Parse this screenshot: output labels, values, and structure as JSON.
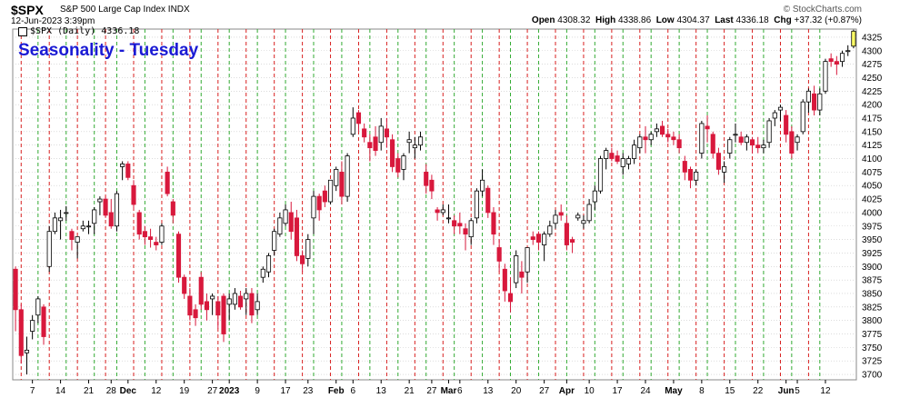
{
  "header": {
    "symbol": "$SPX",
    "description": "S&P 500 Large Cap Index  INDX",
    "datetime": "12-Jun-2023 3:39pm",
    "watermark": "© StockCharts.com",
    "open_label": "Open",
    "open": "4308.32",
    "high_label": "High",
    "high": "4338.86",
    "low_label": "Low",
    "low": "4304.37",
    "last_label": "Last",
    "last": "4336.18",
    "chg_label": "Chg",
    "chg": "+37.32 (+0.87%)"
  },
  "legend": {
    "text": "$SPX (Daily) 4336.18"
  },
  "annotation": "Seasonality - Tuesday",
  "colors": {
    "up": "#ffffff",
    "down": "#d8183c",
    "vline_green": "#33aa33",
    "vline_red": "#d82020",
    "grid": "#c8c8c8",
    "annotation": "#1a1ad4",
    "last_bar": "#ffff66"
  },
  "chart_data": {
    "type": "candlestick",
    "title": "Seasonality - Tuesday",
    "ylim": [
      3690,
      4340
    ],
    "y_ticks": [
      3700,
      3725,
      3750,
      3775,
      3800,
      3825,
      3850,
      3875,
      3900,
      3925,
      3950,
      3975,
      4000,
      4025,
      4050,
      4075,
      4100,
      4125,
      4150,
      4175,
      4200,
      4225,
      4250,
      4275,
      4300,
      4325
    ],
    "x_tick_labels": [
      {
        "label": "7",
        "index": 3,
        "bold": false
      },
      {
        "label": "14",
        "index": 8,
        "bold": false
      },
      {
        "label": "21",
        "index": 13,
        "bold": false
      },
      {
        "label": "28",
        "index": 17,
        "bold": false
      },
      {
        "label": "Dec",
        "index": 20,
        "bold": true
      },
      {
        "label": "12",
        "index": 25,
        "bold": false
      },
      {
        "label": "19",
        "index": 30,
        "bold": false
      },
      {
        "label": "27",
        "index": 35,
        "bold": false
      },
      {
        "label": "2023",
        "index": 38,
        "bold": true
      },
      {
        "label": "9",
        "index": 43,
        "bold": false
      },
      {
        "label": "17",
        "index": 48,
        "bold": false
      },
      {
        "label": "23",
        "index": 52,
        "bold": false
      },
      {
        "label": "Feb",
        "index": 57,
        "bold": true
      },
      {
        "label": "6",
        "index": 60,
        "bold": false
      },
      {
        "label": "13",
        "index": 65,
        "bold": false
      },
      {
        "label": "21",
        "index": 70,
        "bold": false
      },
      {
        "label": "27",
        "index": 74,
        "bold": false
      },
      {
        "label": "Mar",
        "index": 77,
        "bold": true
      },
      {
        "label": "6",
        "index": 79,
        "bold": false
      },
      {
        "label": "13",
        "index": 84,
        "bold": false
      },
      {
        "label": "20",
        "index": 89,
        "bold": false
      },
      {
        "label": "27",
        "index": 94,
        "bold": false
      },
      {
        "label": "Apr",
        "index": 98,
        "bold": true
      },
      {
        "label": "10",
        "index": 102,
        "bold": false
      },
      {
        "label": "17",
        "index": 107,
        "bold": false
      },
      {
        "label": "24",
        "index": 112,
        "bold": false
      },
      {
        "label": "May",
        "index": 117,
        "bold": true
      },
      {
        "label": "8",
        "index": 122,
        "bold": false
      },
      {
        "label": "15",
        "index": 127,
        "bold": false
      },
      {
        "label": "22",
        "index": 132,
        "bold": false
      },
      {
        "label": "Jun",
        "index": 137,
        "bold": true
      },
      {
        "label": "5",
        "index": 139,
        "bold": false
      },
      {
        "label": "12",
        "index": 144,
        "bold": false
      }
    ],
    "vlines_green": [
      4,
      9,
      14,
      18,
      23,
      28,
      33,
      38,
      43,
      48,
      53,
      58,
      63,
      68,
      73,
      78,
      83,
      88,
      93,
      98,
      103,
      108,
      113,
      118,
      123,
      128,
      133,
      138,
      143
    ],
    "vlines_red": [
      1,
      6,
      11,
      16,
      21,
      26,
      31,
      36,
      41,
      46,
      51,
      56,
      61,
      66,
      71,
      76,
      81,
      86,
      91,
      96,
      101,
      106,
      111,
      116,
      121,
      126,
      131,
      136,
      141
    ],
    "ohlc": [
      [
        3895,
        3900,
        3780,
        3820
      ],
      [
        3820,
        3830,
        3720,
        3735
      ],
      [
        3740,
        3770,
        3700,
        3745
      ],
      [
        3780,
        3810,
        3765,
        3800
      ],
      [
        3810,
        3845,
        3795,
        3840
      ],
      [
        3825,
        3830,
        3755,
        3770
      ],
      [
        3900,
        3975,
        3890,
        3965
      ],
      [
        3965,
        4000,
        3960,
        3990
      ],
      [
        3985,
        4005,
        3950,
        3990
      ],
      [
        4000,
        4012,
        3985,
        4000
      ],
      [
        3965,
        3970,
        3930,
        3950
      ],
      [
        3945,
        3955,
        3915,
        3955
      ],
      [
        3970,
        3985,
        3965,
        3975
      ],
      [
        3975,
        3985,
        3960,
        3975
      ],
      [
        3980,
        4010,
        3960,
        4005
      ],
      [
        4020,
        4030,
        3995,
        4025
      ],
      [
        4025,
        4030,
        3990,
        3995
      ],
      [
        4000,
        4025,
        3970,
        3975
      ],
      [
        3975,
        4040,
        3965,
        4035
      ],
      [
        4085,
        4095,
        4060,
        4090
      ],
      [
        4090,
        4095,
        4060,
        4065
      ],
      [
        4050,
        4060,
        4005,
        4015
      ],
      [
        4000,
        4005,
        3950,
        3960
      ],
      [
        3965,
        3975,
        3940,
        3955
      ],
      [
        3955,
        3970,
        3935,
        3950
      ],
      [
        3945,
        3955,
        3930,
        3940
      ],
      [
        3945,
        3980,
        3940,
        3975
      ],
      [
        4075,
        4085,
        4030,
        4035
      ],
      [
        4020,
        4025,
        3980,
        3995
      ],
      [
        3960,
        3965,
        3870,
        3880
      ],
      [
        3880,
        3885,
        3840,
        3850
      ],
      [
        3845,
        3860,
        3800,
        3810
      ],
      [
        3820,
        3830,
        3790,
        3805
      ],
      [
        3880,
        3890,
        3820,
        3830
      ],
      [
        3835,
        3850,
        3800,
        3820
      ],
      [
        3840,
        3850,
        3810,
        3845
      ],
      [
        3835,
        3845,
        3785,
        3810
      ],
      [
        3845,
        3850,
        3760,
        3775
      ],
      [
        3830,
        3850,
        3800,
        3840
      ],
      [
        3830,
        3860,
        3820,
        3850
      ],
      [
        3845,
        3855,
        3820,
        3825
      ],
      [
        3840,
        3860,
        3810,
        3850
      ],
      [
        3850,
        3860,
        3795,
        3810
      ],
      [
        3820,
        3850,
        3810,
        3835
      ],
      [
        3880,
        3900,
        3870,
        3895
      ],
      [
        3890,
        3925,
        3880,
        3920
      ],
      [
        3930,
        3970,
        3920,
        3965
      ],
      [
        3960,
        4000,
        3955,
        3990
      ],
      [
        3980,
        4015,
        3975,
        4005
      ],
      [
        4000,
        4020,
        3950,
        3965
      ],
      [
        3990,
        4005,
        3910,
        3920
      ],
      [
        3920,
        3930,
        3890,
        3905
      ],
      [
        3915,
        3960,
        3900,
        3950
      ],
      [
        3990,
        4040,
        3960,
        4030
      ],
      [
        4030,
        4035,
        3985,
        4005
      ],
      [
        4040,
        4050,
        4010,
        4020
      ],
      [
        4020,
        4060,
        4015,
        4060
      ],
      [
        4050,
        4085,
        4040,
        4080
      ],
      [
        4075,
        4095,
        4015,
        4030
      ],
      [
        4030,
        4110,
        4020,
        4105
      ],
      [
        4145,
        4195,
        4140,
        4175
      ],
      [
        4185,
        4190,
        4150,
        4165
      ],
      [
        4155,
        4165,
        4130,
        4140
      ],
      [
        4130,
        4145,
        4095,
        4120
      ],
      [
        4140,
        4160,
        4105,
        4115
      ],
      [
        4130,
        4175,
        4115,
        4160
      ],
      [
        4155,
        4175,
        4120,
        4140
      ],
      [
        4135,
        4145,
        4075,
        4085
      ],
      [
        4100,
        4110,
        4065,
        4075
      ],
      [
        4080,
        4110,
        4060,
        4105
      ],
      [
        4130,
        4150,
        4110,
        4135
      ],
      [
        4120,
        4140,
        4100,
        4125
      ],
      [
        4125,
        4150,
        4115,
        4140
      ],
      [
        4075,
        4090,
        4035,
        4050
      ],
      [
        4060,
        4070,
        4025,
        4040
      ],
      [
        4005,
        4010,
        3985,
        4000
      ],
      [
        4000,
        4015,
        3995,
        4005
      ],
      [
        3990,
        4015,
        3980,
        3990
      ],
      [
        3985,
        3995,
        3960,
        3975
      ],
      [
        3980,
        4000,
        3960,
        3975
      ],
      [
        3970,
        3980,
        3930,
        3960
      ],
      [
        3955,
        3990,
        3940,
        3985
      ],
      [
        3990,
        4045,
        3980,
        4040
      ],
      [
        4040,
        4080,
        4030,
        4060
      ],
      [
        4045,
        4050,
        3990,
        4000
      ],
      [
        4000,
        4010,
        3940,
        3960
      ],
      [
        3935,
        3950,
        3890,
        3910
      ],
      [
        3895,
        3905,
        3835,
        3855
      ],
      [
        3850,
        3880,
        3815,
        3835
      ],
      [
        3870,
        3930,
        3860,
        3920
      ],
      [
        3890,
        3910,
        3850,
        3880
      ],
      [
        3890,
        3935,
        3870,
        3935
      ],
      [
        3955,
        3965,
        3940,
        3950
      ],
      [
        3960,
        3965,
        3930,
        3945
      ],
      [
        3940,
        3965,
        3910,
        3960
      ],
      [
        3960,
        3985,
        3955,
        3975
      ],
      [
        3980,
        4005,
        3970,
        3995
      ],
      [
        4000,
        4015,
        3985,
        3995
      ],
      [
        3980,
        3995,
        3930,
        3940
      ],
      [
        3950,
        3955,
        3925,
        3945
      ],
      [
        3990,
        4000,
        3985,
        3995
      ],
      [
        3980,
        3995,
        3970,
        3985
      ],
      [
        3985,
        4025,
        3980,
        4015
      ],
      [
        4020,
        4050,
        4005,
        4040
      ],
      [
        4040,
        4105,
        4035,
        4100
      ],
      [
        4100,
        4120,
        4080,
        4115
      ],
      [
        4110,
        4120,
        4095,
        4100
      ],
      [
        4105,
        4115,
        4090,
        4095
      ],
      [
        4085,
        4110,
        4070,
        4100
      ],
      [
        4090,
        4105,
        4080,
        4100
      ],
      [
        4100,
        4135,
        4090,
        4125
      ],
      [
        4120,
        4145,
        4110,
        4140
      ],
      [
        4140,
        4160,
        4110,
        4135
      ],
      [
        4135,
        4150,
        4125,
        4145
      ],
      [
        4150,
        4165,
        4140,
        4155
      ],
      [
        4160,
        4170,
        4140,
        4145
      ],
      [
        4145,
        4155,
        4130,
        4140
      ],
      [
        4140,
        4150,
        4125,
        4135
      ],
      [
        4135,
        4145,
        4110,
        4120
      ],
      [
        4095,
        4105,
        4060,
        4075
      ],
      [
        4080,
        4085,
        4045,
        4060
      ],
      [
        4060,
        4080,
        4050,
        4075
      ],
      [
        4110,
        4170,
        4100,
        4165
      ],
      [
        4160,
        4180,
        4130,
        4155
      ],
      [
        4145,
        4150,
        4100,
        4110
      ],
      [
        4110,
        4120,
        4070,
        4080
      ],
      [
        4075,
        4095,
        4055,
        4085
      ],
      [
        4110,
        4140,
        4100,
        4135
      ],
      [
        4145,
        4165,
        4130,
        4145
      ],
      [
        4140,
        4150,
        4125,
        4130
      ],
      [
        4130,
        4145,
        4115,
        4140
      ],
      [
        4135,
        4140,
        4110,
        4125
      ],
      [
        4125,
        4140,
        4110,
        4120
      ],
      [
        4120,
        4135,
        4110,
        4125
      ],
      [
        4130,
        4175,
        4120,
        4170
      ],
      [
        4175,
        4190,
        4160,
        4185
      ],
      [
        4190,
        4200,
        4170,
        4195
      ],
      [
        4180,
        4190,
        4130,
        4145
      ],
      [
        4150,
        4160,
        4100,
        4110
      ],
      [
        4130,
        4145,
        4115,
        4140
      ],
      [
        4150,
        4210,
        4145,
        4205
      ],
      [
        4205,
        4230,
        4185,
        4225
      ],
      [
        4220,
        4235,
        4180,
        4190
      ],
      [
        4190,
        4230,
        4180,
        4220
      ],
      [
        4225,
        4285,
        4220,
        4280
      ],
      [
        4285,
        4295,
        4270,
        4280
      ],
      [
        4280,
        4290,
        4255,
        4275
      ],
      [
        4280,
        4300,
        4270,
        4295
      ],
      [
        4300,
        4310,
        4290,
        4300
      ],
      [
        4308.32,
        4338.86,
        4304.37,
        4336.18
      ]
    ]
  }
}
